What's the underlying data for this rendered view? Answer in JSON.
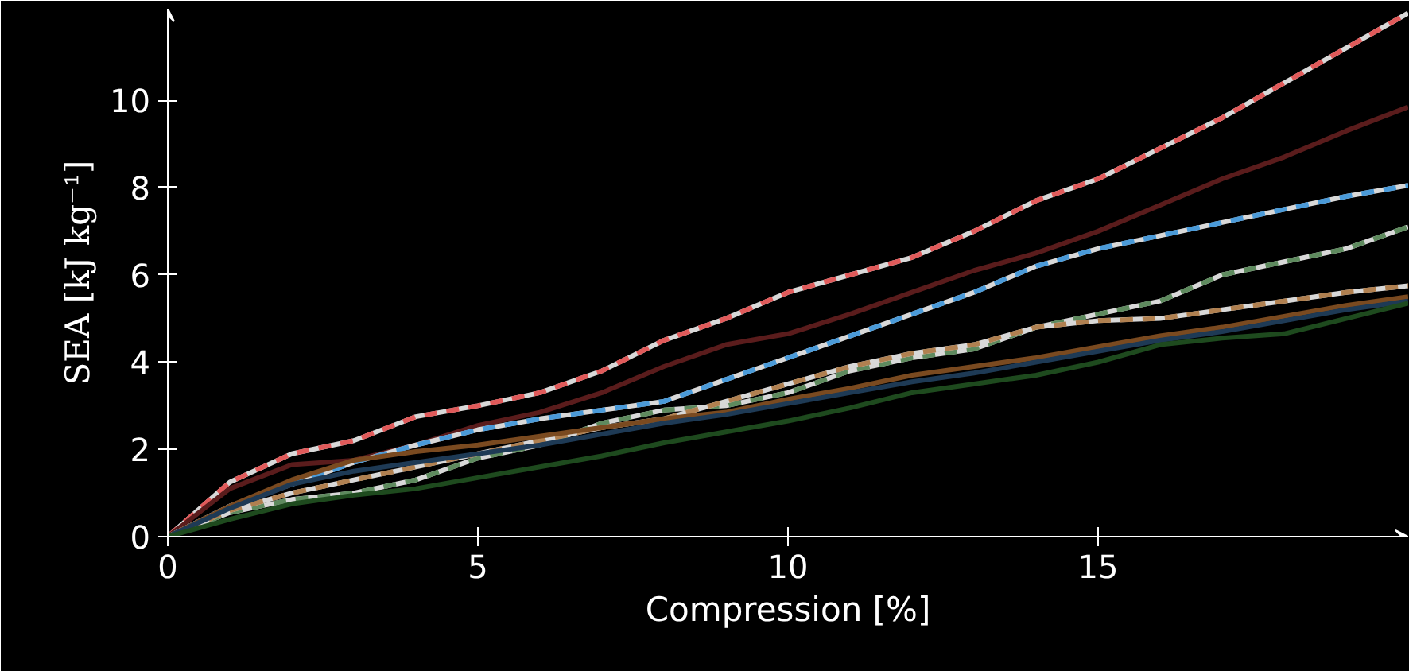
{
  "chart_data": {
    "type": "line",
    "xlabel": "Compression [%]",
    "ylabel": "SEA [kJ kg⁻¹]",
    "x": [
      0,
      1,
      2,
      3,
      4,
      5,
      6,
      7,
      8,
      9,
      10,
      11,
      12,
      13,
      14,
      15,
      16,
      17,
      18,
      19,
      20
    ],
    "xlim": [
      0,
      20
    ],
    "ylim": [
      0,
      12.1
    ],
    "xticks": [
      0,
      5,
      10,
      15
    ],
    "yticks": [
      0,
      2,
      4,
      6,
      8,
      10
    ],
    "grid": false,
    "series": [
      {
        "color": "#e05a5a",
        "line_style": "dashed",
        "values": [
          0,
          1.25,
          1.9,
          2.2,
          2.75,
          3.0,
          3.3,
          3.8,
          4.5,
          5.0,
          5.6,
          6.0,
          6.4,
          7.0,
          7.7,
          8.2,
          8.9,
          9.6,
          10.4,
          11.2,
          12.0
        ]
      },
      {
        "color": "#5a1c1c",
        "line_style": "solid",
        "values": [
          0,
          1.1,
          1.65,
          1.75,
          2.1,
          2.55,
          2.85,
          3.3,
          3.9,
          4.4,
          4.65,
          5.1,
          5.6,
          6.1,
          6.5,
          7.0,
          7.6,
          8.2,
          8.7,
          9.3,
          9.85
        ]
      },
      {
        "color": "#4a9ad8",
        "line_style": "dashed",
        "values": [
          0,
          0.7,
          1.2,
          1.7,
          2.1,
          2.45,
          2.7,
          2.9,
          3.1,
          3.6,
          4.1,
          4.6,
          5.1,
          5.6,
          6.2,
          6.6,
          6.9,
          7.2,
          7.5,
          7.8,
          8.05
        ]
      },
      {
        "color": "#5e8a5e",
        "line_style": "dashed",
        "values": [
          0,
          0.55,
          0.85,
          1.0,
          1.3,
          1.8,
          2.1,
          2.6,
          2.9,
          3.0,
          3.3,
          3.8,
          4.1,
          4.3,
          4.8,
          5.1,
          5.4,
          6.0,
          6.3,
          6.6,
          7.1
        ]
      },
      {
        "color": "#b08050",
        "line_style": "dashed",
        "values": [
          0,
          0.6,
          1.0,
          1.3,
          1.6,
          1.9,
          2.2,
          2.5,
          2.7,
          3.1,
          3.5,
          3.9,
          4.2,
          4.4,
          4.8,
          4.95,
          5.0,
          5.2,
          5.4,
          5.6,
          5.75
        ]
      },
      {
        "color": "#7a4a20",
        "line_style": "solid",
        "values": [
          0,
          0.7,
          1.3,
          1.75,
          1.95,
          2.1,
          2.3,
          2.5,
          2.7,
          2.85,
          3.15,
          3.4,
          3.7,
          3.9,
          4.1,
          4.35,
          4.6,
          4.8,
          5.05,
          5.3,
          5.5
        ]
      },
      {
        "color": "#1e3a55",
        "line_style": "solid",
        "values": [
          0,
          0.65,
          1.2,
          1.5,
          1.7,
          1.9,
          2.1,
          2.35,
          2.6,
          2.8,
          3.05,
          3.3,
          3.55,
          3.75,
          4.0,
          4.25,
          4.5,
          4.7,
          4.95,
          5.2,
          5.4
        ]
      },
      {
        "color": "#1e4a1e",
        "line_style": "solid",
        "values": [
          0,
          0.4,
          0.75,
          0.95,
          1.1,
          1.35,
          1.6,
          1.85,
          2.15,
          2.4,
          2.65,
          2.95,
          3.3,
          3.5,
          3.7,
          4.0,
          4.4,
          4.55,
          4.65,
          5.0,
          5.35
        ]
      }
    ]
  }
}
